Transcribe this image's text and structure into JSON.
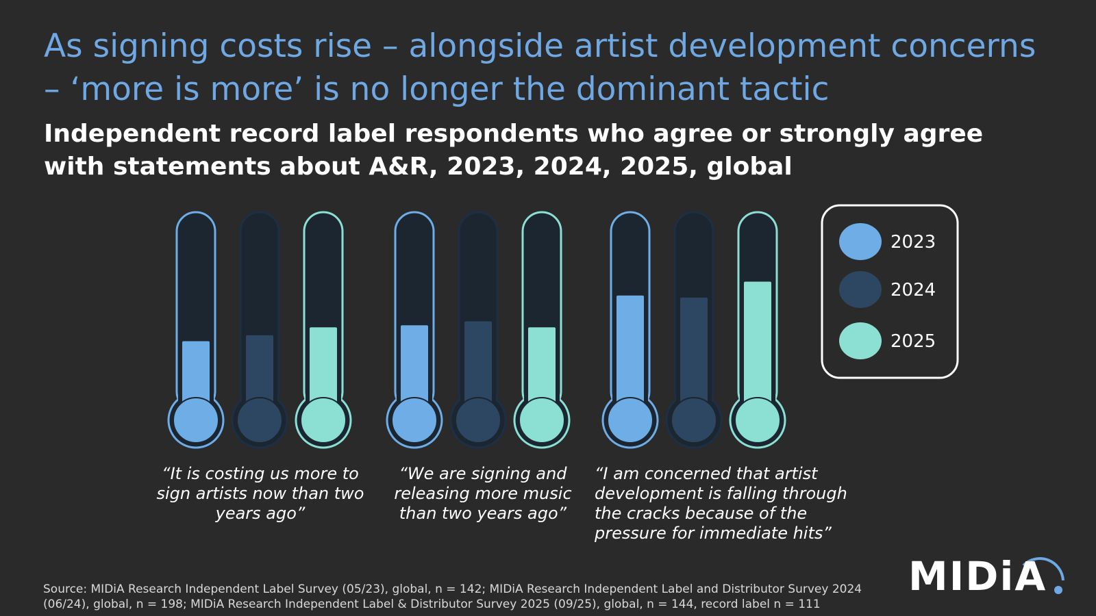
{
  "header": {
    "title": "As signing costs rise – alongside artist development concerns – ‘more is more’ is no longer the dominant tactic",
    "subtitle": "Independent record label respondents who agree or strongly agree with statements about A&R, 2023, 2024, 2025, global"
  },
  "chart_data": {
    "type": "bar",
    "style": "thermometer",
    "categories": [
      "“It is costing us more to sign artists now than two years ago”",
      "“We are signing and releasing more music than two years ago”",
      "“I am concerned that artist development is falling through the cracks because of the pressure for immediate hits”"
    ],
    "series": [
      {
        "name": "2023",
        "color": "#6fade6",
        "values": [
          0.35,
          0.43,
          0.58
        ]
      },
      {
        "name": "2024",
        "color": "#2d4762",
        "values": [
          0.38,
          0.45,
          0.57
        ]
      },
      {
        "name": "2025",
        "color": "#8be0d3",
        "values": [
          0.42,
          0.42,
          0.65
        ]
      }
    ],
    "ylim": [
      0,
      1
    ],
    "legend_position": "right",
    "grid": false
  },
  "footer": {
    "source": "Source: MIDiA Research Independent Label Survey (05/23), global, n = 142; MIDiA Research Independent Label and Distributor Survey 2024 (06/24), global, n = 198; MIDiA Research Independent Label & Distributor Survey 2025 (09/25), global, n = 144, record label n = 111",
    "logo": "MIDiA"
  }
}
